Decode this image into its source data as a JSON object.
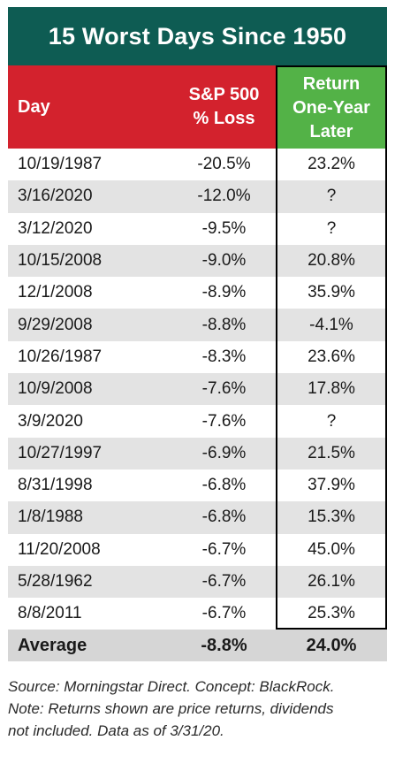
{
  "chart_data": {
    "type": "table",
    "title": "15 Worst Days Since 1950",
    "columns": [
      "Day",
      "S&P 500 % Loss",
      "Return One-Year Later"
    ],
    "headers": {
      "day": "Day",
      "loss_line1": "S&P 500",
      "loss_line2": "% Loss",
      "ret_line1": "Return",
      "ret_line2": "One-Year",
      "ret_line3": "Later"
    },
    "rows": [
      {
        "day": "10/19/1987",
        "loss": "-20.5%",
        "ret": "23.2%"
      },
      {
        "day": "3/16/2020",
        "loss": "-12.0%",
        "ret": "?"
      },
      {
        "day": "3/12/2020",
        "loss": "-9.5%",
        "ret": "?"
      },
      {
        "day": "10/15/2008",
        "loss": "-9.0%",
        "ret": "20.8%"
      },
      {
        "day": "12/1/2008",
        "loss": "-8.9%",
        "ret": "35.9%"
      },
      {
        "day": "9/29/2008",
        "loss": "-8.8%",
        "ret": "-4.1%"
      },
      {
        "day": "10/26/1987",
        "loss": "-8.3%",
        "ret": "23.6%"
      },
      {
        "day": "10/9/2008",
        "loss": "-7.6%",
        "ret": "17.8%"
      },
      {
        "day": "3/9/2020",
        "loss": "-7.6%",
        "ret": "?"
      },
      {
        "day": "10/27/1997",
        "loss": "-6.9%",
        "ret": "21.5%"
      },
      {
        "day": "8/31/1998",
        "loss": "-6.8%",
        "ret": "37.9%"
      },
      {
        "day": "1/8/1988",
        "loss": "-6.8%",
        "ret": "15.3%"
      },
      {
        "day": "11/20/2008",
        "loss": "-6.7%",
        "ret": "45.0%"
      },
      {
        "day": "5/28/1962",
        "loss": "-6.7%",
        "ret": "26.1%"
      },
      {
        "day": "8/8/2011",
        "loss": "-6.7%",
        "ret": "25.3%"
      }
    ],
    "average": {
      "label": "Average",
      "loss": "-8.8%",
      "ret": "24.0%"
    }
  },
  "footer": {
    "line1": "Source: Morningstar Direct. Concept: BlackRock.",
    "line2": "Note: Returns shown are price returns, dividends",
    "line3": "not included. Data as of 3/31/20."
  },
  "colors": {
    "title_bg": "#0e5c53",
    "header_red": "#d3222d",
    "header_green": "#53b247",
    "row_shade": "#e3e3e3",
    "average_bg": "#d6d6d6"
  }
}
